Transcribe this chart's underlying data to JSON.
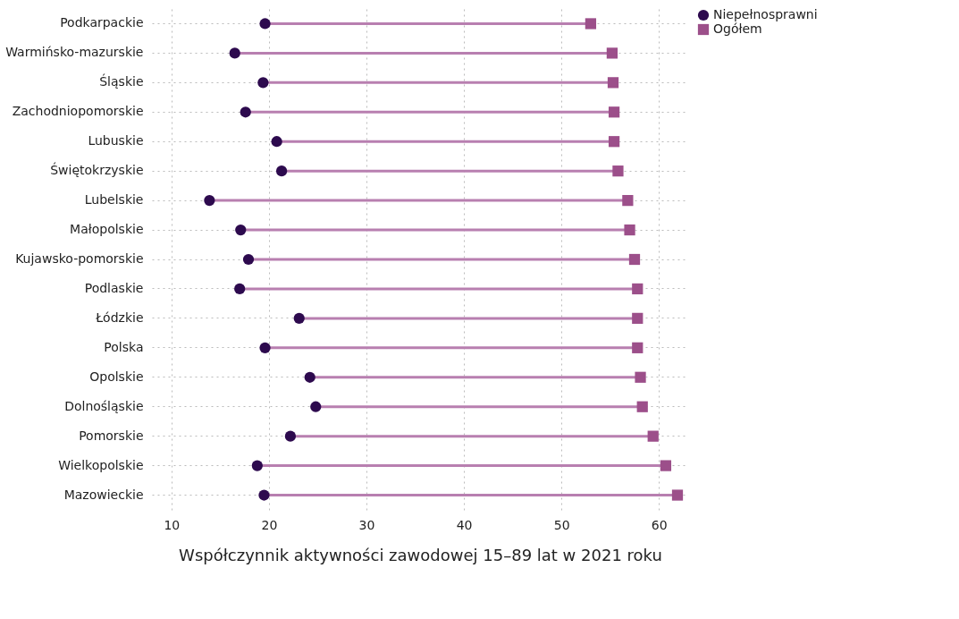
{
  "chart_data": {
    "type": "scatter",
    "orientation": "horizontal",
    "xlabel": "Współczynnik aktywności zawodowej 15–89 lat w 2021 roku",
    "categories": [
      "Podkarpackie",
      "Warmińsko-mazurskie",
      "Śląskie",
      "Zachodniopomorskie",
      "Lubuskie",
      "Świętokrzyskie",
      "Lubelskie",
      "Małopolskie",
      "Kujawsko-pomorskie",
      "Podlaskie",
      "Łódzkie",
      "Polska",
      "Opolskie",
      "Dolnośląskie",
      "Pomorskie",
      "Wielkopolskie",
      "Mazowieckie"
    ],
    "series": [
      {
        "name": "Niepełnosprawni",
        "color": "#2d0a4e",
        "marker": "circle",
        "values": [
          19.6,
          16.5,
          19.4,
          17.6,
          20.8,
          21.3,
          13.9,
          17.1,
          17.9,
          17.0,
          23.1,
          19.6,
          24.2,
          24.8,
          22.2,
          18.8,
          19.5
        ]
      },
      {
        "name": "Ogółem",
        "color": "#9c4f8a",
        "marker": "square",
        "values": [
          53.0,
          55.2,
          55.3,
          55.4,
          55.4,
          55.8,
          56.8,
          57.0,
          57.5,
          57.8,
          57.8,
          57.8,
          58.1,
          58.3,
          59.4,
          60.7,
          61.9
        ]
      }
    ],
    "xlim": [
      8,
      63
    ],
    "xticks": [
      10,
      20,
      30,
      40,
      50,
      60
    ],
    "grid": true,
    "legend": "top right"
  }
}
